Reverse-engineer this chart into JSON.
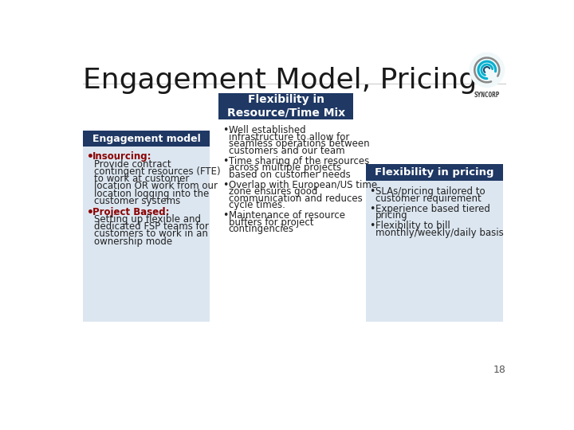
{
  "title": "Engagement Model, Pricing",
  "title_fontsize": 26,
  "title_color": "#1a1a1a",
  "bg_color": "#ffffff",
  "page_number": "18",
  "dark_blue": "#1F3864",
  "header_text_color": "#ffffff",
  "body_text_color": "#222222",
  "red_color": "#8B0000",
  "light_blue_bg": "#dce6f0",
  "col1_header": "Engagement model",
  "col1_bullet1_bold": "Insourcing:",
  "col1_bullet1_rest": " Provide contract contingent resources (FTE) to work at customer location OR work from our location logging into the customer systems",
  "col1_bullet2_bold": "Project Based:",
  "col1_bullet2_rest": " Setting up flexible and dedicated FSP teams for customers to work in an ownership mode",
  "center_header_line1": "Flexibility in",
  "center_header_line2": "Resource/Time Mix",
  "center_bullet1": "Well established infrastructure to allow for seamless operations between customers and our team",
  "center_bullet2": "Time sharing of the resources across multiple projects based on customer  needs",
  "center_bullet3": "Overlap with European/US time zone ensures good communication and reduces cycle times.",
  "center_bullet4": "Maintenance of resource buffers for project contingencies",
  "col3_header": "Flexibility in pricing",
  "col3_bullet1": "SLAs/pricing tailored to customer requirement",
  "col3_bullet2": "Experience based tiered pricing",
  "col3_bullet3": "Flexibility to bill monthly/weekly/daily basis"
}
